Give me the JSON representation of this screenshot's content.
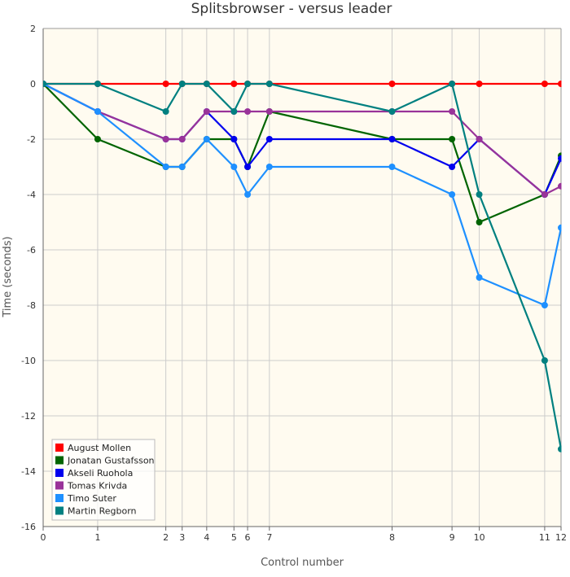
{
  "chart_data": {
    "type": "line",
    "title": "Splitsbrowser - versus leader",
    "xlabel": "Control number",
    "ylabel": "Time (seconds)",
    "xlim": [
      0,
      12
    ],
    "ylim": [
      -16,
      2
    ],
    "xticks": [
      0,
      1,
      2,
      3,
      4,
      5,
      6,
      7,
      8,
      9,
      10,
      11,
      12
    ],
    "xtick_positions": [
      0,
      1,
      2.25,
      2.55,
      3.0,
      3.5,
      3.75,
      4.15,
      6.4,
      7.5,
      8.0,
      9.2,
      9.5
    ],
    "yticks": [
      2,
      0,
      -2,
      -4,
      -6,
      -8,
      -10,
      -12,
      -14,
      -16
    ],
    "grid": true,
    "legend_position": "bottom-left",
    "series": [
      {
        "name": "August Mollen",
        "color": "#ff0000",
        "values": [
          0,
          0,
          0,
          0,
          0,
          0,
          0,
          0,
          0,
          0,
          0,
          0,
          0
        ]
      },
      {
        "name": "Jonatan Gustafsson",
        "color": "#006400",
        "values": [
          0,
          -2,
          -3,
          -3,
          -2,
          -2,
          -3,
          -1,
          -2,
          -2,
          -5,
          -4,
          -2.6
        ]
      },
      {
        "name": "Akseli Ruohola",
        "color": "#0000ee",
        "values": [
          0,
          -1,
          -2,
          -2,
          -1,
          -2,
          -3,
          -2,
          -2,
          -3,
          -2,
          -4,
          -2.7
        ]
      },
      {
        "name": "Tomas Krivda",
        "color": "#993399",
        "values": [
          0,
          -1,
          -2,
          -2,
          -1,
          -1,
          -1,
          -1,
          -1,
          -1,
          -2,
          -4,
          -3.7
        ]
      },
      {
        "name": "Timo Suter",
        "color": "#1e90ff",
        "values": [
          0,
          -1,
          -3,
          -3,
          -2,
          -3,
          -4,
          -3,
          -3,
          -4,
          -7,
          -8,
          -5.2
        ]
      },
      {
        "name": "Martin Regborn",
        "color": "#008080",
        "values": [
          0,
          0,
          -1,
          0,
          0,
          -1,
          0,
          0,
          -1,
          0,
          -4,
          -10,
          -13.2
        ]
      }
    ]
  }
}
